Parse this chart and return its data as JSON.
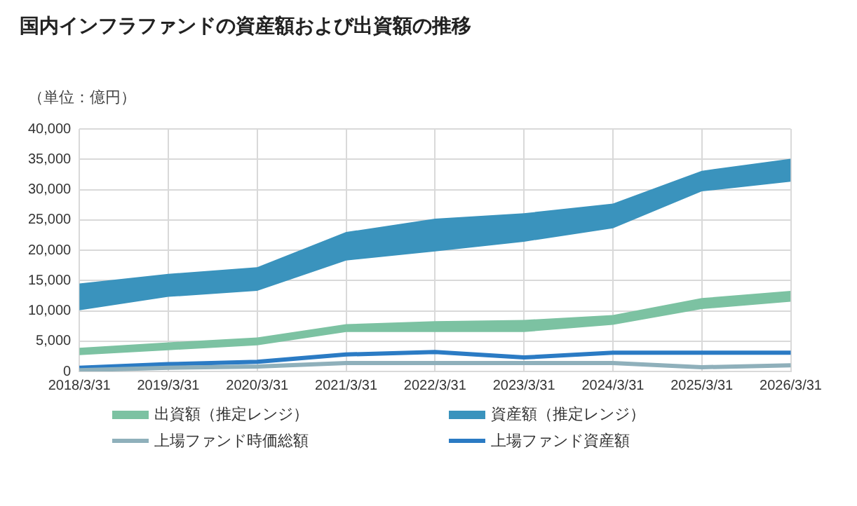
{
  "chart_data": {
    "type": "line",
    "title": "国内インフラファンドの資産額および出資額の推移",
    "ylabel": "（単位：億円）",
    "categories": [
      "2018/3/31",
      "2019/3/31",
      "2020/3/31",
      "2021/3/31",
      "2022/3/31",
      "2023/3/31",
      "2024/3/31",
      "2025/3/31",
      "2026/3/31"
    ],
    "ylim": [
      0,
      40000
    ],
    "yticks": [
      0,
      {
        "value": 5000,
        "label": "5,000"
      },
      {
        "value": 10000,
        "label": "10,000"
      },
      {
        "value": 15000,
        "label": "15,000"
      },
      {
        "value": 20000,
        "label": "20,000"
      },
      {
        "value": 25000,
        "label": "25,000"
      },
      {
        "value": 30000,
        "label": "30,000"
      },
      {
        "value": 35000,
        "label": "35,000"
      },
      {
        "value": 40000,
        "label": "40,000"
      }
    ],
    "grid": true,
    "legend": "bottom",
    "marker": "none",
    "line_style": "solid",
    "series": [
      {
        "name": "出資額（推定レンジ）",
        "type": "area",
        "color": "#7cc2a2",
        "values": [
          null,
          null,
          null,
          null,
          null,
          null,
          null,
          null,
          null
        ],
        "lower": [
          2700,
          3500,
          4300,
          6500,
          6500,
          6500,
          7700,
          10300,
          11500
        ],
        "upper": [
          3900,
          4800,
          5600,
          7800,
          8300,
          8500,
          9300,
          12100,
          13300
        ]
      },
      {
        "name": "資産額（推定レンジ）",
        "type": "area",
        "color": "#3a93bd",
        "values": [
          null,
          null,
          null,
          null,
          null,
          null,
          null,
          null,
          null
        ],
        "lower": [
          10100,
          12300,
          13300,
          18300,
          19800,
          21400,
          23600,
          29700,
          31300
        ],
        "upper": [
          14500,
          16100,
          17200,
          23000,
          25200,
          26100,
          27700,
          33100,
          35100
        ]
      },
      {
        "name": "上場ファンド時価総額",
        "type": "line",
        "color": "#8fb0bb",
        "values": [
          200,
          600,
          800,
          1400,
          1400,
          1400,
          1400,
          700,
          1000
        ]
      },
      {
        "name": "上場ファンド資産額",
        "type": "line",
        "color": "#2b7bc4",
        "values": [
          600,
          1200,
          1600,
          2800,
          3200,
          2300,
          3100,
          3100,
          3100
        ]
      }
    ]
  }
}
